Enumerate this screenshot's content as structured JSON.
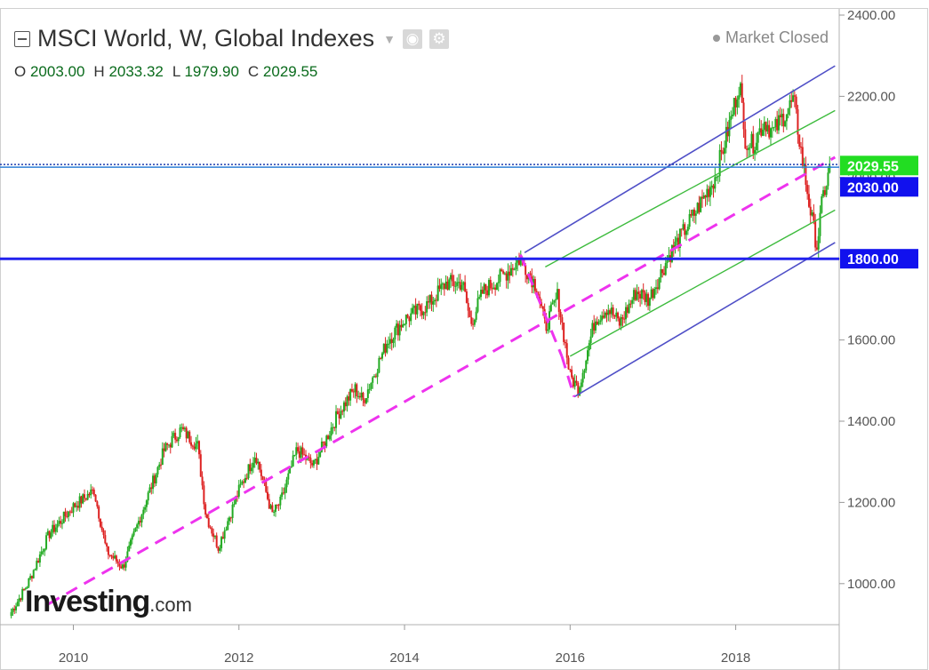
{
  "header": {
    "title": "MSCI World, W, Global Indexes",
    "market_status": "Market Closed",
    "icons": [
      "collapse-icon",
      "dropdown-caret-icon",
      "eye-icon",
      "gear-icon"
    ]
  },
  "ohlc": {
    "o_label": "O",
    "o_value": "2003.00",
    "h_label": "H",
    "h_value": "2033.32",
    "l_label": "L",
    "l_value": "1979.90",
    "c_label": "C",
    "c_value": "2029.55"
  },
  "logo": {
    "main": "Investing",
    "suffix": ".com"
  },
  "colors": {
    "up": "#22aa22",
    "down": "#dd2222",
    "channel_outer": "#4f4fc7",
    "channel_inner": "#3dbb3d",
    "trend": "#ee33ee",
    "hline": "#2222ee",
    "price_tag": "#22dd22",
    "level_tag": "#1111ee"
  },
  "chart_data": {
    "type": "candlestick",
    "title": "MSCI World, W, Global Indexes",
    "xlabel": "",
    "ylabel": "",
    "x_range": [
      2009.2,
      2019.25
    ],
    "ylim": [
      840,
      2420
    ],
    "y_ticks": [
      "1000.00",
      "1200.00",
      "1400.00",
      "1600.00",
      "1800.00",
      "2000.00",
      "2200.00",
      "2400.00"
    ],
    "x_ticks": [
      "2010",
      "2012",
      "2014",
      "2016",
      "2018"
    ],
    "price_path": [
      [
        2009.25,
        930
      ],
      [
        2009.45,
        1000
      ],
      [
        2009.7,
        1120
      ],
      [
        2010.0,
        1190
      ],
      [
        2010.25,
        1230
      ],
      [
        2010.4,
        1080
      ],
      [
        2010.6,
        1040
      ],
      [
        2010.8,
        1160
      ],
      [
        2011.1,
        1330
      ],
      [
        2011.3,
        1380
      ],
      [
        2011.5,
        1340
      ],
      [
        2011.6,
        1170
      ],
      [
        2011.75,
        1090
      ],
      [
        2012.0,
        1230
      ],
      [
        2012.2,
        1320
      ],
      [
        2012.4,
        1170
      ],
      [
        2012.5,
        1200
      ],
      [
        2012.7,
        1330
      ],
      [
        2012.9,
        1290
      ],
      [
        2013.2,
        1420
      ],
      [
        2013.4,
        1480
      ],
      [
        2013.5,
        1450
      ],
      [
        2013.8,
        1600
      ],
      [
        2014.0,
        1650
      ],
      [
        2014.3,
        1690
      ],
      [
        2014.5,
        1740
      ],
      [
        2014.7,
        1740
      ],
      [
        2014.8,
        1640
      ],
      [
        2014.95,
        1720
      ],
      [
        2015.2,
        1760
      ],
      [
        2015.4,
        1800
      ],
      [
        2015.6,
        1730
      ],
      [
        2015.7,
        1630
      ],
      [
        2015.85,
        1710
      ],
      [
        2016.0,
        1510
      ],
      [
        2016.1,
        1480
      ],
      [
        2016.3,
        1650
      ],
      [
        2016.45,
        1680
      ],
      [
        2016.6,
        1640
      ],
      [
        2016.8,
        1720
      ],
      [
        2016.95,
        1700
      ],
      [
        2017.2,
        1810
      ],
      [
        2017.5,
        1910
      ],
      [
        2017.75,
        2000
      ],
      [
        2017.95,
        2150
      ],
      [
        2018.05,
        2240
      ],
      [
        2018.1,
        2100
      ],
      [
        2018.2,
        2080
      ],
      [
        2018.35,
        2140
      ],
      [
        2018.45,
        2110
      ],
      [
        2018.6,
        2160
      ],
      [
        2018.7,
        2190
      ],
      [
        2018.8,
        2050
      ],
      [
        2018.9,
        1920
      ],
      [
        2018.98,
        1830
      ],
      [
        2019.05,
        1950
      ],
      [
        2019.15,
        2029.55
      ]
    ],
    "lines": [
      {
        "name": "",
        "style": "outer",
        "from": [
          2015.45,
          1815
        ],
        "to": [
          2019.2,
          2275
        ]
      },
      {
        "name": "",
        "style": "outer",
        "from": [
          2016.05,
          1460
        ],
        "to": [
          2019.2,
          1840
        ]
      },
      {
        "name": "",
        "style": "inner",
        "from": [
          2015.7,
          1780
        ],
        "to": [
          2019.2,
          2165
        ]
      },
      {
        "name": "",
        "style": "inner",
        "from": [
          2016.0,
          1560
        ],
        "to": [
          2019.2,
          1920
        ]
      },
      {
        "name": "",
        "style": "trend",
        "from": [
          2009.7,
          950
        ],
        "to": [
          2019.2,
          2050
        ]
      },
      {
        "name": "",
        "style": "trend",
        "from": [
          2015.4,
          1810
        ],
        "to": [
          2015.9,
          1560
        ]
      },
      {
        "name": "",
        "style": "trend",
        "from": [
          2015.9,
          1560
        ],
        "to": [
          2016.05,
          1460
        ]
      }
    ],
    "hlines": [
      {
        "value": 2030,
        "label": "2030.00",
        "style": "dotted"
      },
      {
        "value": 1800,
        "label": "1800.00",
        "style": "solid"
      }
    ],
    "last_price": {
      "value": 2029.55,
      "label": "2029.55"
    }
  }
}
